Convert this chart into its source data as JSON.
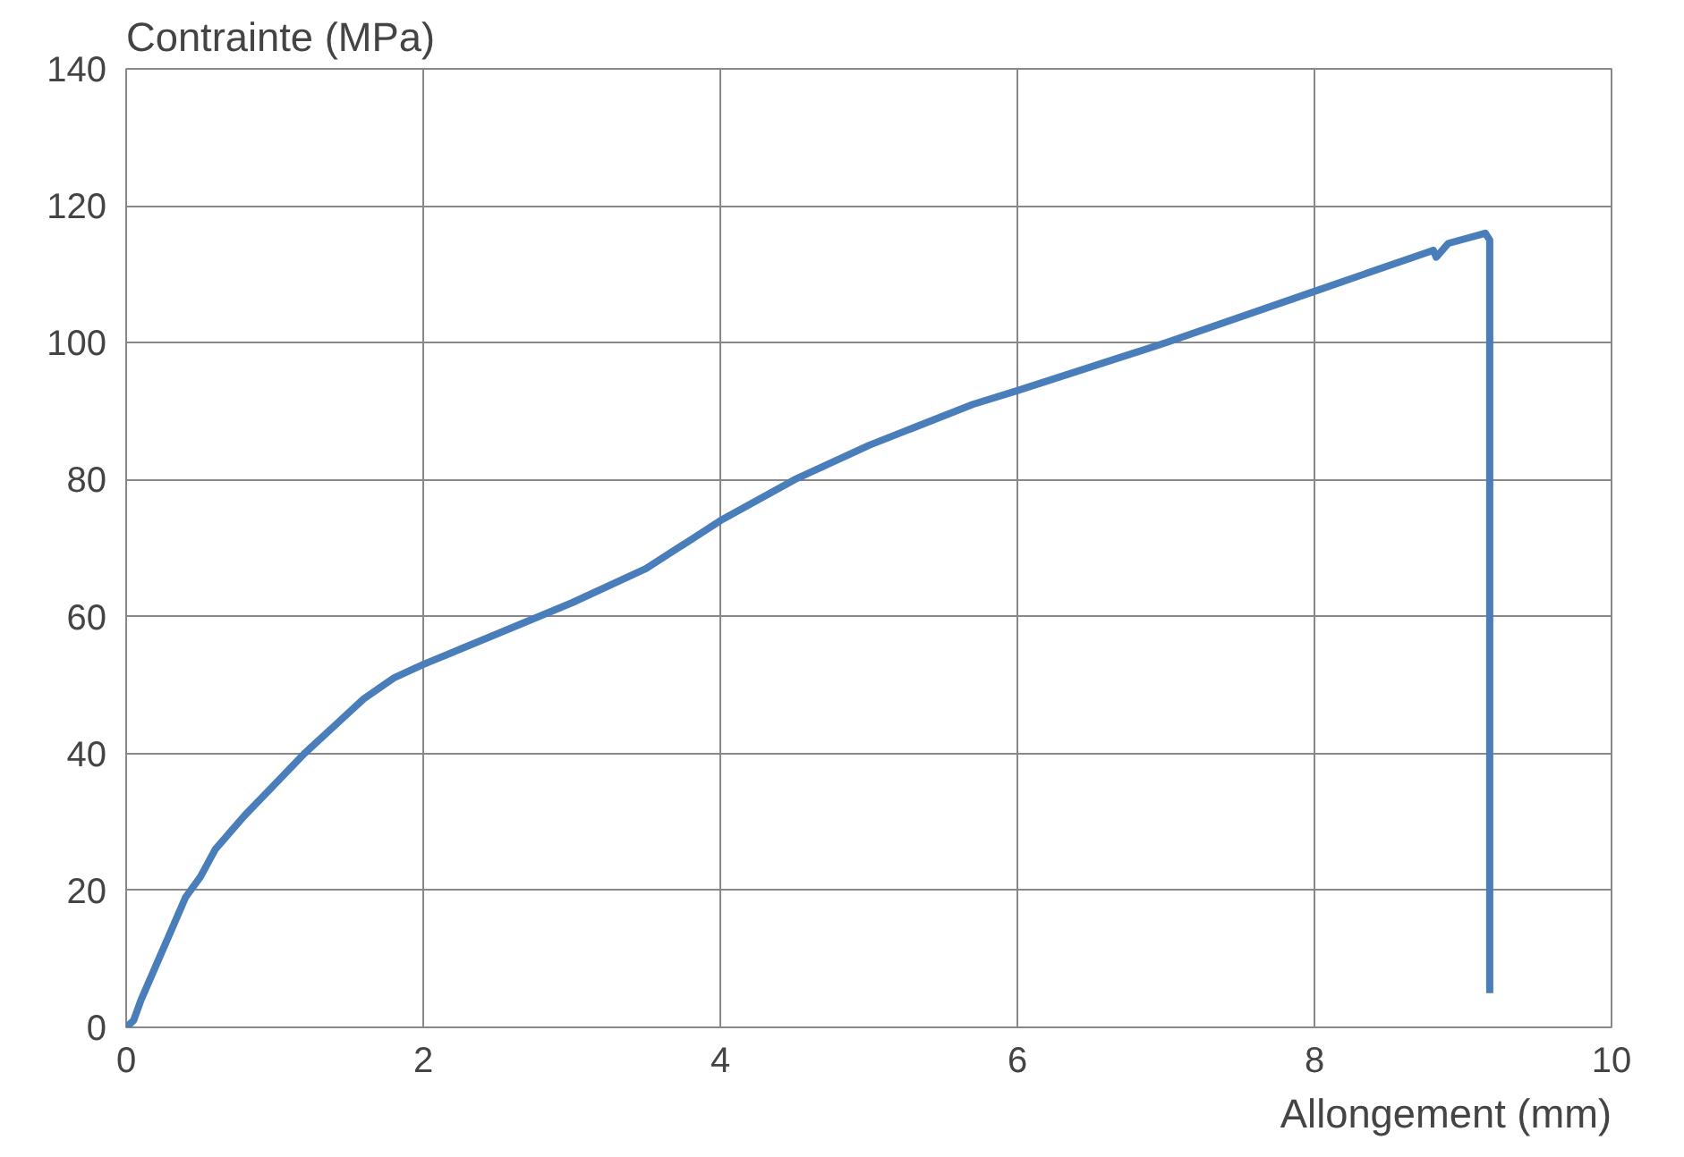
{
  "chart_data": {
    "type": "line",
    "xlabel": "Allongement (mm)",
    "ylabel": "Contrainte (MPa)",
    "xlim": [
      0,
      10
    ],
    "ylim": [
      0,
      140
    ],
    "xticks": [
      0,
      2,
      4,
      6,
      8,
      10
    ],
    "yticks": [
      0,
      20,
      40,
      60,
      80,
      100,
      120,
      140
    ],
    "grid": true,
    "marker": "none",
    "line_style": "solid",
    "series": [
      {
        "color": "#4a7ebb",
        "x": [
          0,
          0.05,
          0.1,
          0.2,
          0.3,
          0.4,
          0.5,
          0.6,
          0.8,
          1.0,
          1.2,
          1.4,
          1.6,
          1.8,
          2.0,
          2.5,
          3.0,
          3.5,
          4.0,
          4.5,
          5.0,
          5.7,
          6.0,
          7.0,
          8.0,
          8.8,
          8.82,
          8.9,
          9.15,
          9.18,
          9.18
        ],
        "values": [
          0,
          1,
          4,
          9,
          14,
          19,
          22,
          26,
          31,
          35.5,
          40,
          44,
          48,
          51,
          53,
          57.5,
          62,
          67,
          74,
          80,
          85,
          91,
          93,
          100,
          107.5,
          113.5,
          112.5,
          114.5,
          116,
          115,
          5
        ]
      }
    ]
  }
}
